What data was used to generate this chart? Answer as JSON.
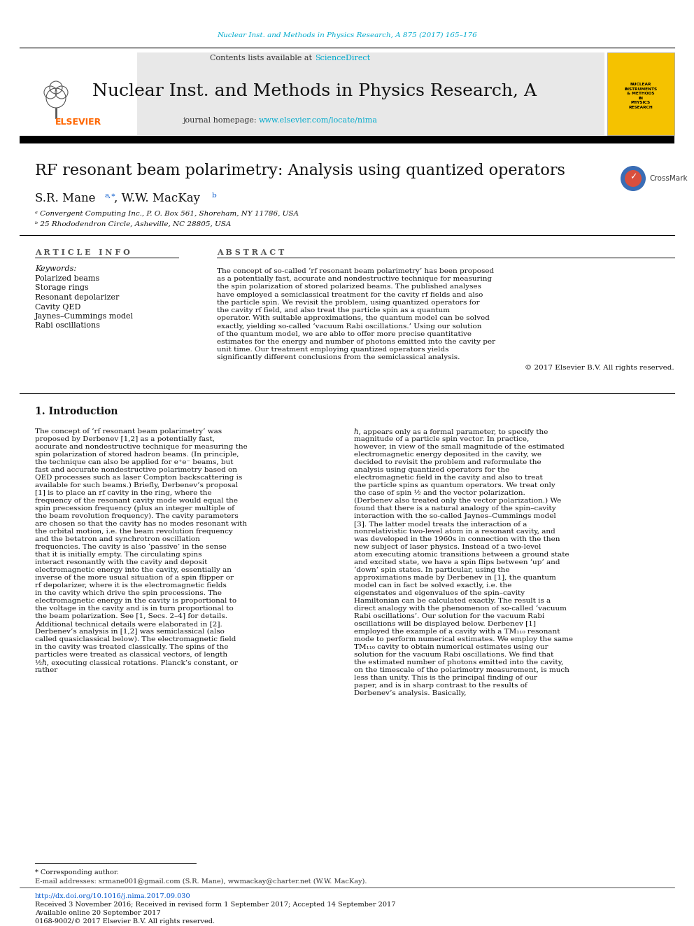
{
  "page_bg": "#ffffff",
  "header_journal_text": "Nuclear Inst. and Methods in Physics Research, A 875 (2017) 165–176",
  "header_journal_color": "#00aacc",
  "journal_name": "Nuclear Inst. and Methods in Physics Research, A",
  "contents_text": "Contents lists available at ",
  "sciencedirect_text": "ScienceDirect",
  "sciencedirect_color": "#00aacc",
  "journal_homepage_text": "journal homepage: ",
  "journal_homepage_url": "www.elsevier.com/locate/nima",
  "journal_homepage_color": "#00aacc",
  "header_box_bg": "#e8e8e8",
  "elsevier_color": "#ff6600",
  "paper_title": "RF resonant beam polarimetry: Analysis using quantized operators",
  "affil_a": "ᵃ Convergent Computing Inc., P. O. Box 561, Shoreham, NY 11786, USA",
  "affil_b": "ᵇ 25 Rhododendron Circle, Asheville, NC 28805, USA",
  "article_info_header": "A R T I C L E   I N F O",
  "abstract_header": "A B S T R A C T",
  "keywords_label": "Keywords:",
  "keywords": [
    "Polarized beams",
    "Storage rings",
    "Resonant depolarizer",
    "Cavity QED",
    "Jaynes–Cummings model",
    "Rabi oscillations"
  ],
  "abstract_text": "The concept of so-called ‘rf resonant beam polarimetry’ has been proposed as a potentially fast, accurate and nondestructive technique for measuring the spin polarization of stored polarized beams. The published analyses have employed a semiclassical treatment for the cavity rf fields and also the particle spin. We revisit the problem, using quantized operators for the cavity rf field, and also treat the particle spin as a quantum operator. With suitable approximations, the quantum model can be solved exactly, yielding so-called ‘vacuum Rabi oscillations.’ Using our solution of the quantum model, we are able to offer more precise quantitative estimates for the energy and number of photons emitted into the cavity per unit time. Our treatment employing quantized operators yields significantly different conclusions from the semiclassical analysis.",
  "copyright_text": "© 2017 Elsevier B.V. All rights reserved.",
  "section1_title": "1. Introduction",
  "intro_col1": "    The concept of ‘rf resonant beam polarimetry’ was proposed by Derbenev [1,2] as a potentially fast, accurate and nondestructive technique for measuring the spin polarization of stored hadron beams. (In principle, the technique can also be applied for e⁺e⁻ beams, but fast and accurate nondestructive polarimetry based on QED processes such as laser Compton backscattering is available for such beams.) Briefly, Derbenev’s proposal [1] is to place an rf cavity in the ring, where the frequency of the resonant cavity mode would equal the spin precession frequency (plus an integer multiple of the beam revolution frequency). The cavity parameters are chosen so that the cavity has no modes resonant with the orbital motion, i.e. the beam revolution frequency and the betatron and synchrotron oscillation frequencies. The cavity is also ‘passive’ in the sense that it is initially empty. The circulating spins interact resonantly with the cavity and deposit electromagnetic energy into the cavity, essentially an inverse of the more usual situation of a spin flipper or rf depolarizer, where it is the electromagnetic fields in the cavity which drive the spin precessions. The electromagnetic energy in the cavity is proportional to the voltage in the cavity and is in turn proportional to the beam polarization. See [1, Secs. 2–4] for details. Additional technical details were elaborated in [2]. Derbenev’s analysis in [1,2] was semiclassical (also called quasiclassical below). The electromagnetic field in the cavity was treated classically. The spins of the particles were treated as classical vectors, of length ½ℏ, executing classical rotations. Planck’s constant, or rather",
  "intro_col2": "ℏ, appears only as a formal parameter, to specify the magnitude of a particle spin vector. In practice, however, in view of the small magnitude of the estimated electromagnetic energy deposited in the cavity, we decided to revisit the problem and reformulate the analysis using quantized operators for the electromagnetic field in the cavity and also to treat the particle spins as quantum operators. We treat only the case of spin ½ and the vector polarization. (Derbenev also treated only the vector polarization.) We found that there is a natural analogy of the spin–cavity interaction with the so-called Jaynes–Cummings model [3]. The latter model treats the interaction of a nonrelativistic two-level atom in a resonant cavity, and was developed in the 1960s in connection with the then new subject of laser physics. Instead of a two-level atom executing atomic transitions between a ground state and excited state, we have a spin flips between ‘up’ and ‘down’ spin states. In particular, using the approximations made by Derbenev in [1], the quantum model can in fact be solved exactly, i.e. the eigenstates and eigenvalues of the spin–cavity Hamiltonian can be calculated exactly. The result is a direct analogy with the phenomenon of so-called ‘vacuum Rabi oscillations’. Our solution for the vacuum Rabi oscillations will be displayed below. Derbenev [1] employed the example of a cavity with a TM₁₁₀ resonant mode to perform numerical estimates. We employ the same TM₁₁₀ cavity to obtain numerical estimates using our solution for the vacuum Rabi oscillations. We find that the estimated number of photons emitted into the cavity, on the timescale of the polarimetry measurement, is much less than unity. This is the principal finding of our paper, and is in sharp contrast to the results of Derbenev’s analysis. Basically,",
  "footer_note": "* Corresponding author.",
  "footer_email": "E-mail addresses: srmane001@gmail.com (S.R. Mane), wwmackay@charter.net (W.W. MacKay).",
  "footer_doi": "http://dx.doi.org/10.1016/j.nima.2017.09.030",
  "footer_received": "Received 3 November 2016; Received in revised form 1 September 2017; Accepted 14 September 2017",
  "footer_available": "Available online 20 September 2017",
  "footer_issn": "0168-9002/© 2017 Elsevier B.V. All rights reserved."
}
